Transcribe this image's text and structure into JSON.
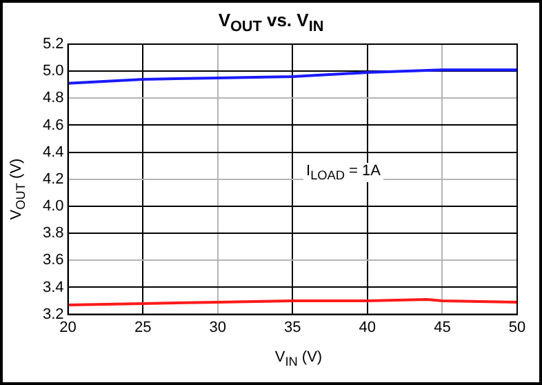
{
  "chart_data": {
    "type": "line",
    "title": "V$_{OUT}$ vs. V$_{IN}$",
    "xlabel": "V$_{IN}$ (V)",
    "ylabel": "V$_{OUT}$ (V)",
    "annotations": [
      "I$_{LOAD}$ = 1A"
    ],
    "series": [
      {
        "color": "#1a1aff",
        "x": [
          20,
          25,
          30,
          35,
          40,
          45,
          50
        ],
        "values": [
          4.91,
          4.94,
          4.95,
          4.96,
          4.99,
          5.01,
          5.01
        ]
      },
      {
        "color": "#ff1a1a",
        "x": [
          20,
          25,
          30,
          35,
          40,
          44,
          45,
          50
        ],
        "values": [
          3.27,
          3.28,
          3.29,
          3.3,
          3.3,
          3.31,
          3.3,
          3.29
        ]
      }
    ],
    "xlim": [
      20,
      50
    ],
    "xticks": [
      20,
      25,
      30,
      35,
      40,
      45,
      50
    ],
    "ylim": [
      3.2,
      5.2
    ],
    "yticks": [
      3.2,
      3.4,
      3.6,
      3.8,
      {
        "value": 4,
        "label": "4.0"
      },
      4.2,
      4.4,
      4.6,
      4.8,
      {
        "value": 5,
        "label": "5.0"
      },
      5.2
    ],
    "grid": true,
    "legend": false,
    "marker": "none",
    "line_style": "solid"
  }
}
